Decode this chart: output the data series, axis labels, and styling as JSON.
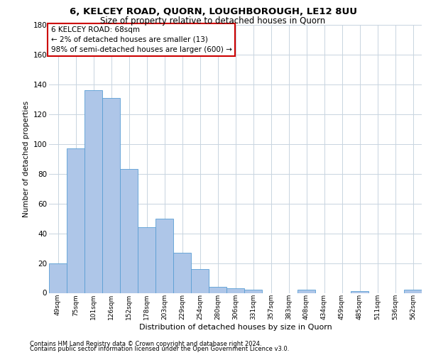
{
  "title_line1": "6, KELCEY ROAD, QUORN, LOUGHBOROUGH, LE12 8UU",
  "title_line2": "Size of property relative to detached houses in Quorn",
  "xlabel": "Distribution of detached houses by size in Quorn",
  "ylabel": "Number of detached properties",
  "footnote_line1": "Contains HM Land Registry data © Crown copyright and database right 2024.",
  "footnote_line2": "Contains public sector information licensed under the Open Government Licence v3.0.",
  "annotation_line1": "6 KELCEY ROAD: 68sqm",
  "annotation_line2": "← 2% of detached houses are smaller (13)",
  "annotation_line3": "98% of semi-detached houses are larger (600) →",
  "categories": [
    "49sqm",
    "75sqm",
    "101sqm",
    "126sqm",
    "152sqm",
    "178sqm",
    "203sqm",
    "229sqm",
    "254sqm",
    "280sqm",
    "306sqm",
    "331sqm",
    "357sqm",
    "383sqm",
    "408sqm",
    "434sqm",
    "459sqm",
    "485sqm",
    "511sqm",
    "536sqm",
    "562sqm"
  ],
  "values": [
    20,
    97,
    136,
    131,
    83,
    44,
    50,
    27,
    16,
    4,
    3,
    2,
    0,
    0,
    2,
    0,
    0,
    1,
    0,
    0,
    2
  ],
  "bar_color": "#aec6e8",
  "bar_edge_color": "#5a9fd4",
  "annotation_box_color": "#ffffff",
  "annotation_box_edge_color": "#cc0000",
  "background_color": "#ffffff",
  "grid_color": "#c8d4e0",
  "ylim": [
    0,
    180
  ],
  "yticks": [
    0,
    20,
    40,
    60,
    80,
    100,
    120,
    140,
    160,
    180
  ],
  "title1_fontsize": 9.5,
  "title2_fontsize": 8.5,
  "ylabel_fontsize": 7.5,
  "xlabel_fontsize": 8.0,
  "ytick_fontsize": 7.5,
  "xtick_fontsize": 6.5,
  "footnote_fontsize": 6.0,
  "annot_fontsize": 7.5
}
